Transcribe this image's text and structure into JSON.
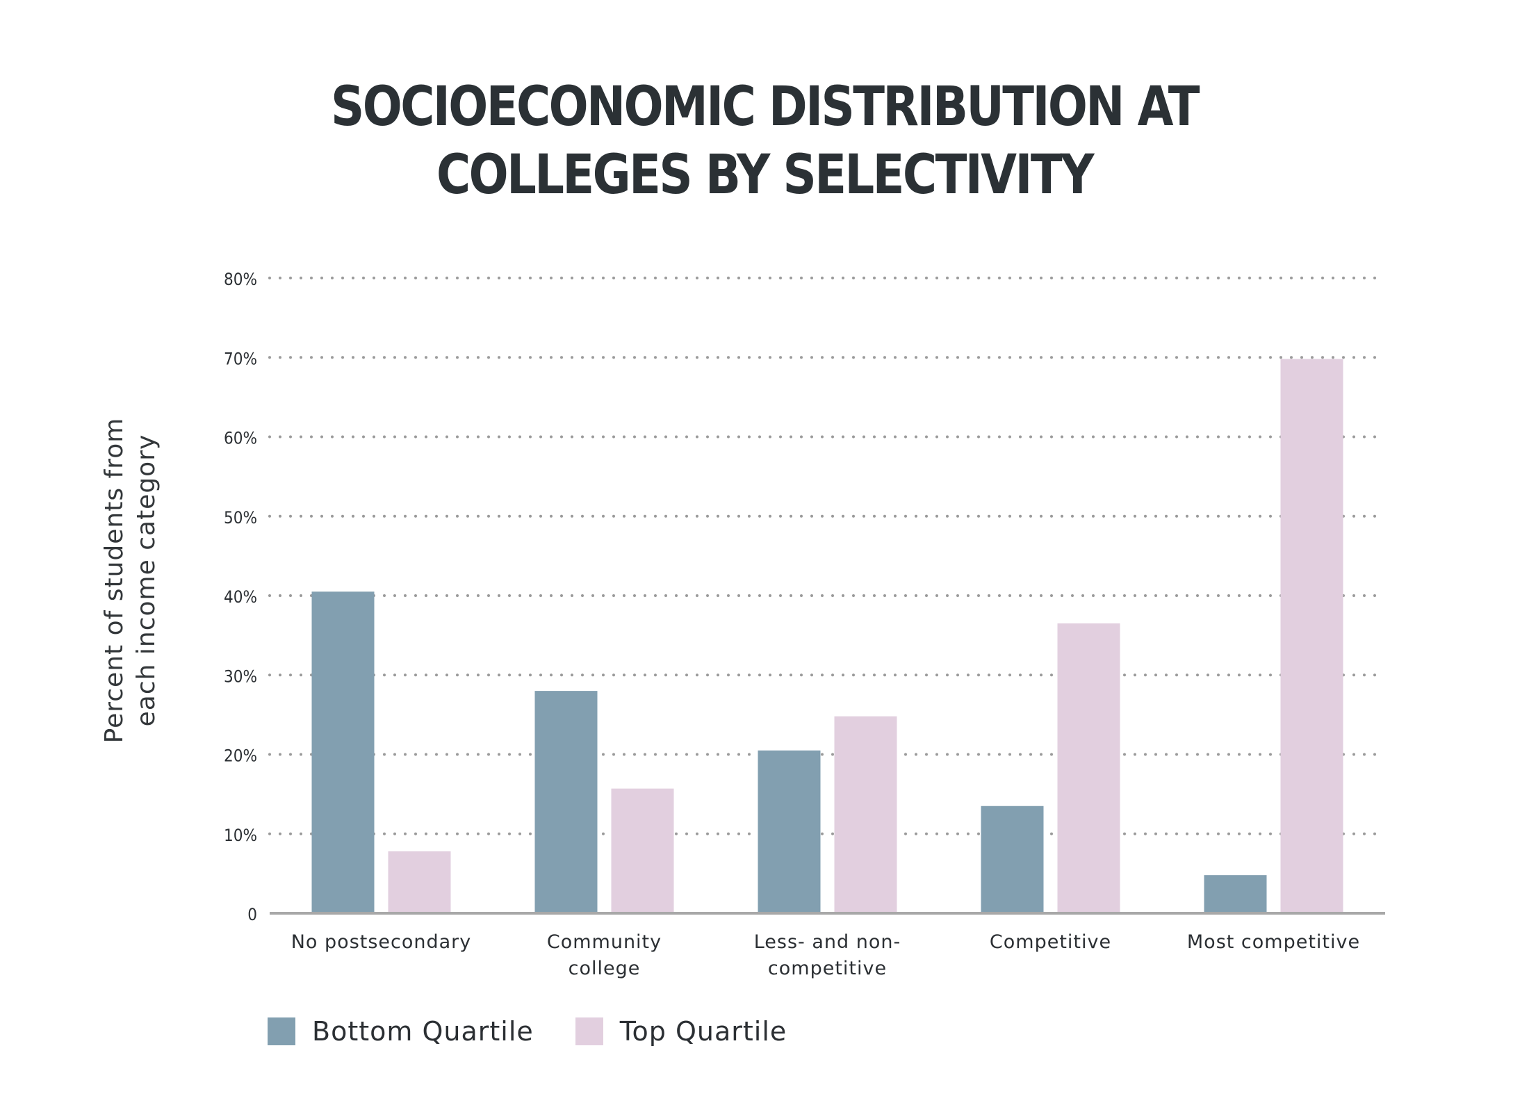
{
  "chart_data": {
    "type": "bar",
    "title": [
      "SOCIOECONOMIC DISTRIBUTION AT",
      "COLLEGES BY SELECTIVITY"
    ],
    "ylabel": [
      "Percent of students from",
      "each income category"
    ],
    "xlabel": "",
    "categories": [
      [
        "No postsecondary"
      ],
      [
        "Community",
        "college"
      ],
      [
        "Less- and non-",
        "competitive"
      ],
      [
        "Competitive"
      ],
      [
        "Most competitive"
      ]
    ],
    "series": [
      {
        "name": "Bottom Quartile",
        "color": "#829fb0",
        "values": [
          40.5,
          28,
          20.5,
          13.5,
          4.8
        ]
      },
      {
        "name": "Top Quartile",
        "color": "#e2cfdf",
        "values": [
          7.8,
          15.7,
          24.8,
          36.5,
          69.8
        ]
      }
    ],
    "ylim": [
      0,
      80
    ],
    "yticks": [
      0,
      10,
      20,
      30,
      40,
      50,
      60,
      70,
      80
    ],
    "ytick_labels": [
      "0",
      "10%",
      "20%",
      "30%",
      "40%",
      "50%",
      "60%",
      "70%",
      "80%"
    ],
    "grid": true,
    "legend": "bottom-left"
  }
}
